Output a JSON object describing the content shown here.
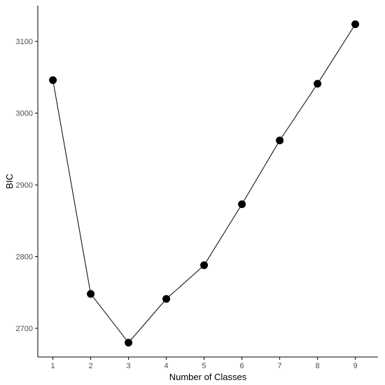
{
  "chart_data": {
    "type": "line",
    "xlabel": "Number of Classes",
    "ylabel": "BIC",
    "x": [
      1,
      2,
      3,
      4,
      5,
      6,
      7,
      8,
      9
    ],
    "series": [
      {
        "values": [
          3046,
          2748,
          2680,
          2741,
          2788,
          2873,
          2962,
          3041,
          3124
        ]
      }
    ],
    "xlim": [
      0.6,
      9.6
    ],
    "ylim": [
      2660,
      3150
    ],
    "x_ticks": [
      "1",
      "2",
      "3",
      "4",
      "5",
      "6",
      "7",
      "8",
      "9"
    ],
    "y_ticks": [
      "2700",
      "2800",
      "2900",
      "3000",
      "3100"
    ],
    "grid": false,
    "colors": {
      "line": "#000000",
      "point": "#000000",
      "axis": "#000000",
      "tick_label": "#4d4d4d"
    }
  }
}
